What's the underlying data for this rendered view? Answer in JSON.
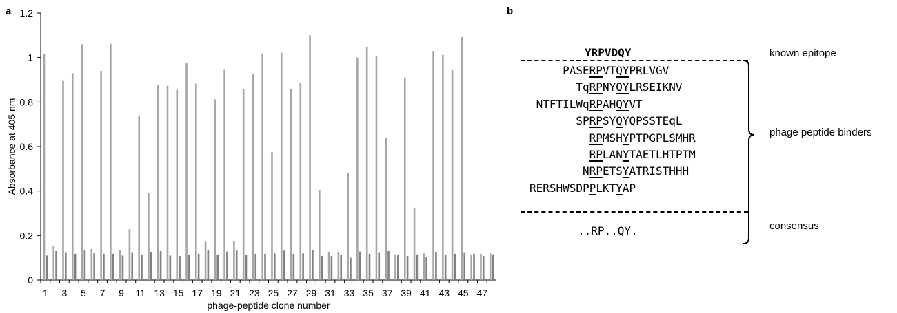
{
  "panels": {
    "a": "a",
    "b": "b"
  },
  "chart_data": {
    "type": "bar",
    "ylabel": "Absorbance at 405 nm",
    "xlabel": "phage-peptide clone number",
    "ylim": [
      0,
      1.2
    ],
    "y_ticks": [
      "0",
      "0.2",
      "0.4",
      "0.6",
      "0.8",
      "1",
      "1.2"
    ],
    "x_tick_labels": [
      "1",
      "3",
      "5",
      "7",
      "9",
      "11",
      "13",
      "15",
      "17",
      "19",
      "21",
      "23",
      "25",
      "27",
      "29",
      "31",
      "33",
      "35",
      "37",
      "39",
      "41",
      "43",
      "45",
      "47"
    ],
    "categories": [
      1,
      2,
      3,
      4,
      5,
      6,
      7,
      8,
      9,
      10,
      11,
      12,
      13,
      14,
      15,
      16,
      17,
      18,
      19,
      20,
      21,
      22,
      23,
      24,
      25,
      26,
      27,
      28,
      29,
      30,
      31,
      32,
      33,
      34,
      35,
      36,
      37,
      38,
      39,
      40,
      41,
      42,
      43,
      44,
      45,
      46,
      47,
      48
    ],
    "series": [
      {
        "color": "#a6a6a6",
        "values": [
          1.015,
          0.155,
          0.895,
          0.93,
          1.06,
          0.14,
          0.94,
          1.062,
          0.135,
          0.228,
          0.74,
          0.39,
          0.878,
          0.873,
          0.855,
          0.975,
          0.883,
          0.172,
          0.812,
          0.945,
          0.175,
          0.86,
          0.928,
          1.018,
          0.575,
          1.022,
          0.86,
          0.885,
          1.1,
          0.405,
          0.125,
          0.125,
          0.48,
          1.0,
          1.048,
          1.008,
          0.64,
          0.115,
          0.91,
          0.325,
          0.12,
          1.03,
          1.012,
          0.943,
          1.092,
          0.115,
          0.118,
          0.12
        ]
      },
      {
        "color": "#808080",
        "values": [
          0.11,
          0.13,
          0.122,
          0.118,
          0.135,
          0.12,
          0.118,
          0.118,
          0.11,
          0.122,
          0.115,
          0.125,
          0.13,
          0.11,
          0.108,
          0.112,
          0.118,
          0.135,
          0.115,
          0.128,
          0.132,
          0.112,
          0.118,
          0.118,
          0.12,
          0.132,
          0.118,
          0.12,
          0.135,
          0.108,
          0.108,
          0.112,
          0.1,
          0.128,
          0.118,
          0.122,
          0.13,
          0.112,
          0.108,
          0.115,
          0.105,
          0.125,
          0.115,
          0.118,
          0.122,
          0.118,
          0.108,
          0.115
        ]
      }
    ]
  },
  "sequences": {
    "known_epitope": "YRPVDQY",
    "binders": [
      [
        "PASE",
        "RP",
        "V",
        "T",
        "QY",
        "PRLVGV"
      ],
      [
        "Tq",
        "RP",
        "NY",
        "QY",
        "LRSEIKNV"
      ],
      [
        "NTFTILWq",
        "RP",
        "AH",
        "QY",
        "VT"
      ],
      [
        "SP",
        "RP",
        "SY",
        "Q",
        "YQ",
        "PSSTEqL"
      ],
      [
        "",
        "RP",
        "MSH",
        "Y",
        "PTPGPLSMHR"
      ],
      [
        "",
        "RP",
        "LAN",
        "Y",
        "TAETLHTPTM"
      ],
      [
        "N",
        "RP",
        "ETS",
        "Y",
        "ATRISTHHH"
      ],
      [
        "RERSHWSDP",
        "P",
        "LKT",
        "Y",
        "AP"
      ]
    ],
    "consensus": "..RP..QY."
  },
  "labels": {
    "known_epitope": "known epitope",
    "binders": "phage peptide binders",
    "consensus": "consensus"
  }
}
